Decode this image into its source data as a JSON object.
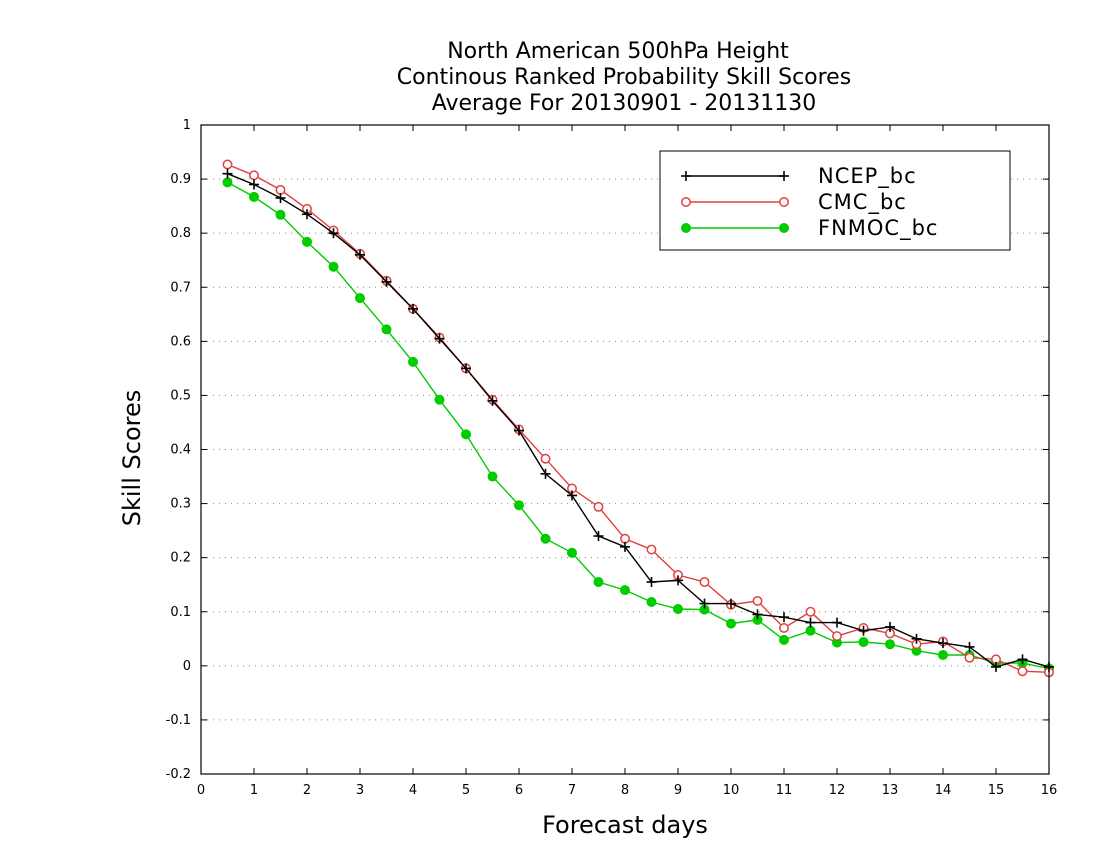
{
  "chart_data": {
    "type": "line",
    "title": [
      "North American 500hPa Height",
      "Continous Ranked Probability Skill Scores",
      "Average For 20130901 - 20131130"
    ],
    "xlabel": "Forecast days",
    "ylabel": "Skill Scores",
    "xlim": [
      0,
      16
    ],
    "ylim": [
      -0.2,
      1
    ],
    "xticks": [
      "0",
      "1",
      "2",
      "3",
      "4",
      "5",
      "6",
      "7",
      "8",
      "9",
      "10",
      "11",
      "12",
      "13",
      "14",
      "15",
      "16"
    ],
    "yticks": [
      "-0.2",
      "-0.1",
      "0",
      "0.1",
      "0.2",
      "0.3",
      "0.4",
      "0.5",
      "0.6",
      "0.7",
      "0.8",
      "0.9",
      "1"
    ],
    "grid": "horizontal dotted",
    "legend_position": "top-right",
    "x": [
      0.5,
      1,
      1.5,
      2,
      2.5,
      3,
      3.5,
      4,
      4.5,
      5,
      5.5,
      6,
      6.5,
      7,
      7.5,
      8,
      8.5,
      9,
      9.5,
      10,
      10.5,
      11,
      11.5,
      12,
      12.5,
      13,
      13.5,
      14,
      14.5,
      15,
      15.5,
      16
    ],
    "series": [
      {
        "name": "NCEP_bc",
        "color": "#000000",
        "marker": "plus",
        "values": [
          0.91,
          0.89,
          0.865,
          0.835,
          0.8,
          0.76,
          0.71,
          0.66,
          0.605,
          0.55,
          0.49,
          0.435,
          0.355,
          0.315,
          0.24,
          0.22,
          0.155,
          0.158,
          0.115,
          0.115,
          0.095,
          0.09,
          0.08,
          0.08,
          0.065,
          0.072,
          0.05,
          0.042,
          0.035,
          -0.002,
          0.012,
          -0.002
        ]
      },
      {
        "name": "CMC_bc",
        "color": "#e04040",
        "marker": "open-circle",
        "values": [
          0.927,
          0.907,
          0.88,
          0.845,
          0.805,
          0.762,
          0.712,
          0.66,
          0.607,
          0.55,
          0.492,
          0.437,
          0.383,
          0.328,
          0.294,
          0.235,
          0.215,
          0.168,
          0.155,
          0.113,
          0.12,
          0.07,
          0.1,
          0.055,
          0.07,
          0.06,
          0.04,
          0.045,
          0.015,
          0.012,
          -0.01,
          -0.012
        ]
      },
      {
        "name": "FNMOC_bc",
        "color": "#00cc00",
        "marker": "filled-circle",
        "values": [
          0.894,
          0.867,
          0.834,
          0.784,
          0.738,
          0.68,
          0.622,
          0.562,
          0.492,
          0.428,
          0.35,
          0.297,
          0.235,
          0.209,
          0.155,
          0.14,
          0.118,
          0.105,
          0.104,
          0.078,
          0.085,
          0.048,
          0.065,
          0.043,
          0.044,
          0.04,
          0.028,
          0.02,
          0.02,
          0.005,
          0.005,
          -0.005
        ]
      }
    ]
  }
}
